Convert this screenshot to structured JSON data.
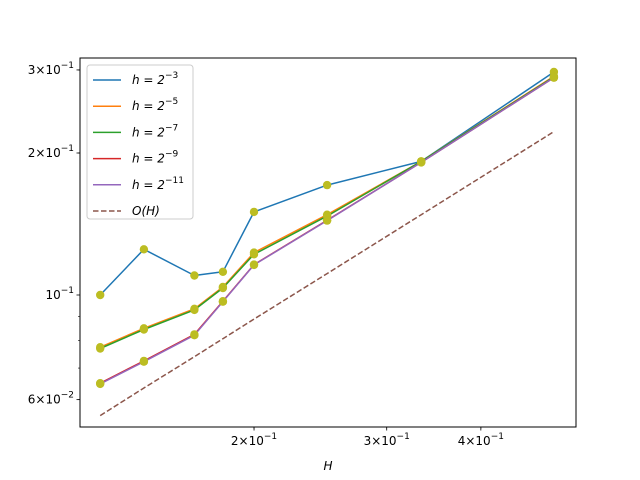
{
  "chart_data": {
    "type": "line",
    "xscale": "log",
    "yscale": "log",
    "xlabel": "H",
    "ylabel": "",
    "title": "",
    "xlim": [
      0.1175,
      0.535
    ],
    "ylim": [
      0.0525,
      0.318
    ],
    "grid": false,
    "legend_position": "top-left",
    "x": [
      0.125,
      0.14286,
      0.16667,
      0.18182,
      0.2,
      0.25,
      0.33333,
      0.5
    ],
    "series": [
      {
        "name": "h = 2^{-3}",
        "label_base": "h = 2",
        "label_exp": "−3",
        "color": "#1f77b4",
        "style": "solid",
        "values": [
          0.1,
          0.125,
          0.11,
          0.112,
          0.15,
          0.171,
          0.192,
          0.297
        ]
      },
      {
        "name": "h = 2^{-5}",
        "label_base": "h = 2",
        "label_exp": "−5",
        "color": "#ff7f0e",
        "style": "solid",
        "values": [
          0.0775,
          0.085,
          0.0935,
          0.104,
          0.123,
          0.148,
          0.192,
          0.291
        ]
      },
      {
        "name": "h = 2^{-7}",
        "label_base": "h = 2",
        "label_exp": "−7",
        "color": "#2ca02c",
        "style": "solid",
        "values": [
          0.077,
          0.0845,
          0.093,
          0.1035,
          0.122,
          0.147,
          0.192,
          0.29
        ]
      },
      {
        "name": "h = 2^{-9}",
        "label_base": "h = 2",
        "label_exp": "−9",
        "color": "#d62728",
        "style": "solid",
        "values": [
          0.065,
          0.0725,
          0.0825,
          0.097,
          0.116,
          0.144,
          0.191,
          0.289
        ]
      },
      {
        "name": "h = 2^{-11}",
        "label_base": "h = 2",
        "label_exp": "−11",
        "color": "#9467bd",
        "style": "solid",
        "values": [
          0.0648,
          0.0722,
          0.0822,
          0.0968,
          0.1158,
          0.1438,
          0.191,
          0.289
        ]
      },
      {
        "name": "O(H)",
        "label_base": "O(H)",
        "label_exp": "",
        "color": "#8c564b",
        "style": "dashed",
        "values": [
          0.0555,
          0.0635,
          0.074,
          0.0808,
          0.0889,
          0.111,
          0.148,
          0.222
        ]
      }
    ],
    "marker_color": "#bcbd22",
    "x_major_ticks": [
      {
        "value": 0.2,
        "base": "2×10",
        "exp": "−1"
      },
      {
        "value": 0.3,
        "base": "3×10",
        "exp": "−1"
      },
      {
        "value": 0.4,
        "base": "4×10",
        "exp": "−1"
      }
    ],
    "x_minor_ticks": [
      0.2,
      0.3,
      0.4
    ],
    "y_major_ticks": [
      {
        "value": 0.06,
        "base": "6×10",
        "exp": "−2"
      },
      {
        "value": 0.1,
        "base": "10",
        "exp": "−1"
      },
      {
        "value": 0.2,
        "base": "2×10",
        "exp": "−1"
      },
      {
        "value": 0.3,
        "base": "3×10",
        "exp": "−1"
      }
    ],
    "y_minor_ticks": [
      0.06,
      0.07,
      0.08,
      0.09,
      0.2,
      0.3
    ]
  }
}
